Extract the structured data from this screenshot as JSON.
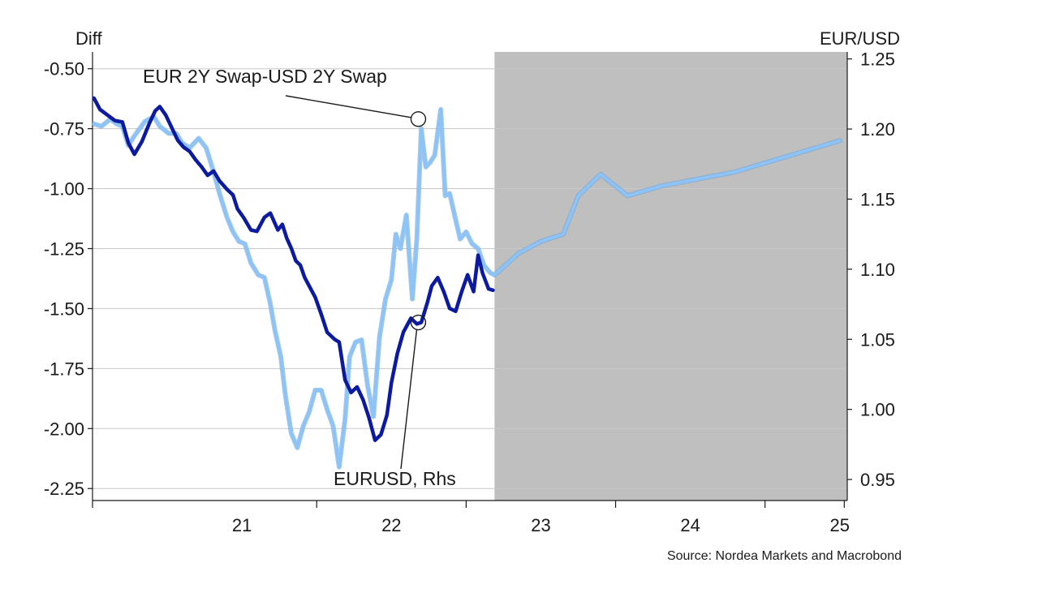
{
  "chart_data": {
    "type": "line",
    "left_axis_title": "Diff",
    "right_axis_title": "EUR/USD",
    "x_ticks": [
      "21",
      "22",
      "23",
      "24",
      "25"
    ],
    "y_left_ticks": [
      "-0.50",
      "-0.75",
      "-1.00",
      "-1.25",
      "-1.50",
      "-1.75",
      "-2.00",
      "-2.25"
    ],
    "y_right_ticks": [
      "1.25",
      "1.20",
      "1.15",
      "1.10",
      "1.05",
      "1.00",
      "0.95"
    ],
    "ylim_left": [
      -2.3,
      -0.43
    ],
    "ylim_right": [
      0.935,
      1.255
    ],
    "xlim": [
      2020.5,
      2025.55
    ],
    "grid": "horizontal",
    "shaded_region": {
      "from": 2023.19,
      "to": 2025.55,
      "color": "#bfbfbf"
    },
    "annotations": [
      {
        "text": "EUR 2Y Swap-USD 2Y Swap",
        "target_series": "EUR 2Y Swap-USD 2Y Swap",
        "x": 2022.68,
        "y": -0.71
      },
      {
        "text": "EURUSD, Rhs",
        "target_series": "EURUSD, Rhs",
        "x": 2022.68,
        "y": 1.062
      }
    ],
    "series": [
      {
        "name": "EURUSD, Rhs",
        "axis": "right",
        "color": "#0b1a9e",
        "values": [
          [
            2020.51,
            1.222
          ],
          [
            2020.55,
            1.214
          ],
          [
            2020.6,
            1.21
          ],
          [
            2020.65,
            1.206
          ],
          [
            2020.7,
            1.205
          ],
          [
            2020.74,
            1.19
          ],
          [
            2020.78,
            1.182
          ],
          [
            2020.83,
            1.191
          ],
          [
            2020.88,
            1.204
          ],
          [
            2020.92,
            1.213
          ],
          [
            2020.95,
            1.216
          ],
          [
            2020.99,
            1.21
          ],
          [
            2021.03,
            1.201
          ],
          [
            2021.07,
            1.192
          ],
          [
            2021.11,
            1.187
          ],
          [
            2021.15,
            1.184
          ],
          [
            2021.19,
            1.178
          ],
          [
            2021.23,
            1.173
          ],
          [
            2021.27,
            1.167
          ],
          [
            2021.31,
            1.17
          ],
          [
            2021.35,
            1.163
          ],
          [
            2021.4,
            1.157
          ],
          [
            2021.44,
            1.153
          ],
          [
            2021.47,
            1.143
          ],
          [
            2021.51,
            1.137
          ],
          [
            2021.56,
            1.128
          ],
          [
            2021.6,
            1.127
          ],
          [
            2021.65,
            1.137
          ],
          [
            2021.69,
            1.14
          ],
          [
            2021.74,
            1.128
          ],
          [
            2021.77,
            1.132
          ],
          [
            2021.8,
            1.122
          ],
          [
            2021.83,
            1.115
          ],
          [
            2021.86,
            1.106
          ],
          [
            2021.89,
            1.103
          ],
          [
            2021.92,
            1.094
          ],
          [
            2021.95,
            1.088
          ],
          [
            2021.99,
            1.08
          ],
          [
            2022.03,
            1.068
          ],
          [
            2022.07,
            1.055
          ],
          [
            2022.12,
            1.05
          ],
          [
            2022.15,
            1.048
          ],
          [
            2022.19,
            1.021
          ],
          [
            2022.23,
            1.012
          ],
          [
            2022.27,
            1.016
          ],
          [
            2022.31,
            1.007
          ],
          [
            2022.35,
            0.994
          ],
          [
            2022.39,
            0.978
          ],
          [
            2022.43,
            0.982
          ],
          [
            2022.47,
            0.996
          ],
          [
            2022.5,
            1.019
          ],
          [
            2022.54,
            1.04
          ],
          [
            2022.58,
            1.055
          ],
          [
            2022.63,
            1.065
          ],
          [
            2022.67,
            1.061
          ],
          [
            2022.7,
            1.062
          ],
          [
            2022.74,
            1.076
          ],
          [
            2022.77,
            1.088
          ],
          [
            2022.81,
            1.094
          ],
          [
            2022.85,
            1.084
          ],
          [
            2022.89,
            1.072
          ],
          [
            2022.93,
            1.07
          ],
          [
            2022.97,
            1.084
          ],
          [
            2023.01,
            1.096
          ],
          [
            2023.05,
            1.084
          ],
          [
            2023.08,
            1.11
          ],
          [
            2023.11,
            1.097
          ],
          [
            2023.15,
            1.086
          ],
          [
            2023.18,
            1.085
          ]
        ]
      },
      {
        "name": "EUR 2Y Swap-USD 2Y Swap",
        "axis": "left",
        "color": "#8ec3f5",
        "values": [
          [
            2020.51,
            -0.73
          ],
          [
            2020.56,
            -0.74
          ],
          [
            2020.62,
            -0.71
          ],
          [
            2020.66,
            -0.73
          ],
          [
            2020.7,
            -0.74
          ],
          [
            2020.74,
            -0.82
          ],
          [
            2020.78,
            -0.78
          ],
          [
            2020.85,
            -0.72
          ],
          [
            2020.91,
            -0.7
          ],
          [
            2020.95,
            -0.74
          ],
          [
            2021.01,
            -0.77
          ],
          [
            2021.06,
            -0.77
          ],
          [
            2021.1,
            -0.81
          ],
          [
            2021.15,
            -0.83
          ],
          [
            2021.21,
            -0.79
          ],
          [
            2021.26,
            -0.83
          ],
          [
            2021.31,
            -0.93
          ],
          [
            2021.35,
            -1.02
          ],
          [
            2021.4,
            -1.12
          ],
          [
            2021.44,
            -1.18
          ],
          [
            2021.48,
            -1.22
          ],
          [
            2021.52,
            -1.23
          ],
          [
            2021.56,
            -1.31
          ],
          [
            2021.61,
            -1.36
          ],
          [
            2021.65,
            -1.37
          ],
          [
            2021.69,
            -1.48
          ],
          [
            2021.72,
            -1.59
          ],
          [
            2021.76,
            -1.7
          ],
          [
            2021.79,
            -1.86
          ],
          [
            2021.83,
            -2.02
          ],
          [
            2021.87,
            -2.08
          ],
          [
            2021.91,
            -1.99
          ],
          [
            2021.95,
            -1.93
          ],
          [
            2021.99,
            -1.84
          ],
          [
            2022.03,
            -1.84
          ],
          [
            2022.07,
            -1.92
          ],
          [
            2022.11,
            -1.99
          ],
          [
            2022.15,
            -2.16
          ],
          [
            2022.19,
            -1.96
          ],
          [
            2022.22,
            -1.7
          ],
          [
            2022.26,
            -1.64
          ],
          [
            2022.3,
            -1.63
          ],
          [
            2022.34,
            -1.82
          ],
          [
            2022.38,
            -1.95
          ],
          [
            2022.42,
            -1.62
          ],
          [
            2022.46,
            -1.46
          ],
          [
            2022.5,
            -1.38
          ],
          [
            2022.53,
            -1.19
          ],
          [
            2022.56,
            -1.25
          ],
          [
            2022.6,
            -1.11
          ],
          [
            2022.64,
            -1.46
          ],
          [
            2022.67,
            -1.21
          ],
          [
            2022.7,
            -0.75
          ],
          [
            2022.73,
            -0.91
          ],
          [
            2022.76,
            -0.89
          ],
          [
            2022.79,
            -0.86
          ],
          [
            2022.83,
            -0.67
          ],
          [
            2022.86,
            -1.03
          ],
          [
            2022.89,
            -1.02
          ],
          [
            2022.93,
            -1.13
          ],
          [
            2022.96,
            -1.21
          ],
          [
            2023.0,
            -1.18
          ],
          [
            2023.04,
            -1.23
          ],
          [
            2023.08,
            -1.25
          ],
          [
            2023.12,
            -1.32
          ],
          [
            2023.16,
            -1.35
          ],
          [
            2023.19,
            -1.36
          ],
          [
            2023.35,
            -1.27
          ],
          [
            2023.5,
            -1.22
          ],
          [
            2023.65,
            -1.19
          ],
          [
            2023.75,
            -1.03
          ],
          [
            2023.9,
            -0.94
          ],
          [
            2024.08,
            -1.03
          ],
          [
            2024.3,
            -0.99
          ],
          [
            2024.8,
            -0.93
          ],
          [
            2025.5,
            -0.8
          ]
        ]
      }
    ]
  },
  "source": "Source: Nordea Markets and Macrobond"
}
